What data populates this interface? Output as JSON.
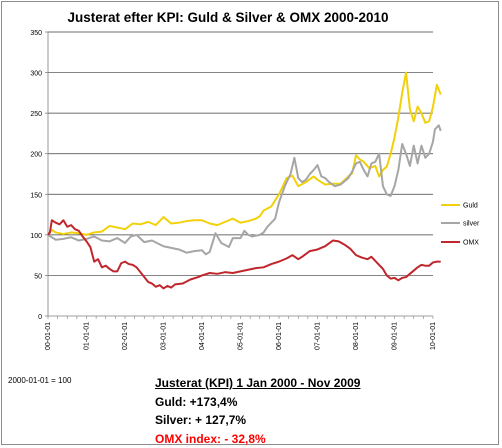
{
  "chart_data": {
    "type": "line",
    "title": "Justerat efter KPI: Guld & Silver & OMX 2000-2010",
    "xlabel": "",
    "ylabel": "",
    "ylim": [
      0,
      350
    ],
    "y_ticks": [
      0,
      50,
      100,
      150,
      200,
      250,
      300,
      350
    ],
    "x_range": [
      2000.0,
      2010.0
    ],
    "x_tick_labels": [
      "00-01-01",
      "01-01-01",
      "02-01-01",
      "03-01-01",
      "04-01-01",
      "05-01-01",
      "06-01-01",
      "07-01-01",
      "08-01-01",
      "09-01-01",
      "10-01-01"
    ],
    "grid": "horizontal",
    "legend_position": "right",
    "series": [
      {
        "name": "Guld",
        "color": "#f2d10a",
        "points": [
          [
            2000.0,
            100
          ],
          [
            2000.1,
            106
          ],
          [
            2000.2,
            103
          ],
          [
            2000.4,
            101
          ],
          [
            2000.6,
            103
          ],
          [
            2000.8,
            102
          ],
          [
            2001.0,
            100
          ],
          [
            2001.2,
            103
          ],
          [
            2001.4,
            104
          ],
          [
            2001.6,
            111
          ],
          [
            2001.8,
            109
          ],
          [
            2002.0,
            107
          ],
          [
            2002.2,
            114
          ],
          [
            2002.4,
            113
          ],
          [
            2002.6,
            116
          ],
          [
            2002.8,
            112
          ],
          [
            2003.0,
            122
          ],
          [
            2003.2,
            114
          ],
          [
            2003.4,
            115
          ],
          [
            2003.6,
            117
          ],
          [
            2003.8,
            118
          ],
          [
            2004.0,
            118
          ],
          [
            2004.2,
            114
          ],
          [
            2004.4,
            112
          ],
          [
            2004.6,
            116
          ],
          [
            2004.8,
            120
          ],
          [
            2005.0,
            115
          ],
          [
            2005.2,
            117
          ],
          [
            2005.4,
            120
          ],
          [
            2005.5,
            123
          ],
          [
            2005.6,
            130
          ],
          [
            2005.8,
            135
          ],
          [
            2006.0,
            150
          ],
          [
            2006.2,
            170
          ],
          [
            2006.35,
            173
          ],
          [
            2006.5,
            160
          ],
          [
            2006.7,
            165
          ],
          [
            2006.9,
            172
          ],
          [
            2007.0,
            168
          ],
          [
            2007.2,
            162
          ],
          [
            2007.4,
            163
          ],
          [
            2007.6,
            163
          ],
          [
            2007.8,
            172
          ],
          [
            2007.9,
            176
          ],
          [
            2008.0,
            198
          ],
          [
            2008.1,
            193
          ],
          [
            2008.2,
            190
          ],
          [
            2008.35,
            182
          ],
          [
            2008.5,
            185
          ],
          [
            2008.6,
            172
          ],
          [
            2008.7,
            180
          ],
          [
            2008.8,
            184
          ],
          [
            2008.9,
            200
          ],
          [
            2009.0,
            220
          ],
          [
            2009.1,
            245
          ],
          [
            2009.2,
            275
          ],
          [
            2009.3,
            300
          ],
          [
            2009.4,
            255
          ],
          [
            2009.5,
            240
          ],
          [
            2009.6,
            258
          ],
          [
            2009.7,
            250
          ],
          [
            2009.8,
            238
          ],
          [
            2009.9,
            240
          ],
          [
            2010.0,
            258
          ],
          [
            2010.1,
            285
          ],
          [
            2010.2,
            273
          ]
        ]
      },
      {
        "name": "silver",
        "color": "#a6a6a6",
        "points": [
          [
            2000.0,
            100
          ],
          [
            2000.1,
            97
          ],
          [
            2000.2,
            94
          ],
          [
            2000.4,
            95
          ],
          [
            2000.6,
            97
          ],
          [
            2000.8,
            93
          ],
          [
            2001.0,
            95
          ],
          [
            2001.2,
            98
          ],
          [
            2001.4,
            93
          ],
          [
            2001.6,
            92
          ],
          [
            2001.8,
            96
          ],
          [
            2002.0,
            90
          ],
          [
            2002.15,
            98
          ],
          [
            2002.3,
            100
          ],
          [
            2002.5,
            91
          ],
          [
            2002.7,
            93
          ],
          [
            2003.0,
            86
          ],
          [
            2003.2,
            84
          ],
          [
            2003.4,
            82
          ],
          [
            2003.6,
            78
          ],
          [
            2003.8,
            80
          ],
          [
            2004.0,
            81
          ],
          [
            2004.1,
            76
          ],
          [
            2004.2,
            79
          ],
          [
            2004.35,
            102
          ],
          [
            2004.5,
            90
          ],
          [
            2004.7,
            85
          ],
          [
            2004.8,
            96
          ],
          [
            2005.0,
            96
          ],
          [
            2005.1,
            105
          ],
          [
            2005.2,
            100
          ],
          [
            2005.3,
            98
          ],
          [
            2005.5,
            100
          ],
          [
            2005.6,
            103
          ],
          [
            2005.7,
            110
          ],
          [
            2005.9,
            120
          ],
          [
            2006.0,
            140
          ],
          [
            2006.15,
            160
          ],
          [
            2006.3,
            175
          ],
          [
            2006.4,
            195
          ],
          [
            2006.5,
            170
          ],
          [
            2006.6,
            165
          ],
          [
            2006.7,
            168
          ],
          [
            2006.8,
            175
          ],
          [
            2006.9,
            180
          ],
          [
            2007.0,
            186
          ],
          [
            2007.1,
            172
          ],
          [
            2007.2,
            170
          ],
          [
            2007.3,
            165
          ],
          [
            2007.45,
            160
          ],
          [
            2007.6,
            162
          ],
          [
            2007.8,
            170
          ],
          [
            2007.9,
            178
          ],
          [
            2008.0,
            188
          ],
          [
            2008.1,
            190
          ],
          [
            2008.2,
            180
          ],
          [
            2008.3,
            172
          ],
          [
            2008.4,
            188
          ],
          [
            2008.5,
            190
          ],
          [
            2008.6,
            200
          ],
          [
            2008.7,
            160
          ],
          [
            2008.8,
            150
          ],
          [
            2008.9,
            148
          ],
          [
            2009.0,
            160
          ],
          [
            2009.1,
            180
          ],
          [
            2009.2,
            212
          ],
          [
            2009.3,
            200
          ],
          [
            2009.4,
            185
          ],
          [
            2009.5,
            210
          ],
          [
            2009.6,
            188
          ],
          [
            2009.7,
            210
          ],
          [
            2009.8,
            195
          ],
          [
            2009.9,
            200
          ],
          [
            2010.0,
            215
          ],
          [
            2010.05,
            230
          ],
          [
            2010.15,
            235
          ],
          [
            2010.2,
            228
          ]
        ]
      },
      {
        "name": "OMX",
        "color": "#c0272d",
        "points": [
          [
            2000.0,
            100
          ],
          [
            2000.05,
            103
          ],
          [
            2000.1,
            118
          ],
          [
            2000.2,
            115
          ],
          [
            2000.3,
            113
          ],
          [
            2000.4,
            118
          ],
          [
            2000.5,
            110
          ],
          [
            2000.6,
            112
          ],
          [
            2000.7,
            107
          ],
          [
            2000.8,
            105
          ],
          [
            2000.9,
            98
          ],
          [
            2001.0,
            92
          ],
          [
            2001.1,
            85
          ],
          [
            2001.2,
            67
          ],
          [
            2001.3,
            70
          ],
          [
            2001.4,
            60
          ],
          [
            2001.5,
            62
          ],
          [
            2001.6,
            58
          ],
          [
            2001.7,
            55
          ],
          [
            2001.8,
            55
          ],
          [
            2001.9,
            65
          ],
          [
            2002.0,
            67
          ],
          [
            2002.1,
            64
          ],
          [
            2002.2,
            63
          ],
          [
            2002.3,
            60
          ],
          [
            2002.5,
            48
          ],
          [
            2002.6,
            42
          ],
          [
            2002.7,
            40
          ],
          [
            2002.8,
            36
          ],
          [
            2002.9,
            38
          ],
          [
            2003.0,
            34
          ],
          [
            2003.1,
            37
          ],
          [
            2003.2,
            35
          ],
          [
            2003.3,
            39
          ],
          [
            2003.5,
            40
          ],
          [
            2003.7,
            45
          ],
          [
            2003.9,
            48
          ],
          [
            2004.0,
            50
          ],
          [
            2004.2,
            53
          ],
          [
            2004.4,
            52
          ],
          [
            2004.6,
            54
          ],
          [
            2004.8,
            53
          ],
          [
            2005.0,
            55
          ],
          [
            2005.2,
            57
          ],
          [
            2005.4,
            59
          ],
          [
            2005.6,
            60
          ],
          [
            2005.8,
            64
          ],
          [
            2006.0,
            67
          ],
          [
            2006.2,
            71
          ],
          [
            2006.35,
            75
          ],
          [
            2006.5,
            70
          ],
          [
            2006.6,
            73
          ],
          [
            2006.8,
            80
          ],
          [
            2007.0,
            82
          ],
          [
            2007.2,
            86
          ],
          [
            2007.4,
            93
          ],
          [
            2007.55,
            92
          ],
          [
            2007.7,
            88
          ],
          [
            2007.85,
            83
          ],
          [
            2008.0,
            75
          ],
          [
            2008.15,
            72
          ],
          [
            2008.3,
            70
          ],
          [
            2008.4,
            73
          ],
          [
            2008.5,
            68
          ],
          [
            2008.6,
            63
          ],
          [
            2008.7,
            58
          ],
          [
            2008.8,
            50
          ],
          [
            2008.9,
            46
          ],
          [
            2009.0,
            47
          ],
          [
            2009.1,
            44
          ],
          [
            2009.2,
            47
          ],
          [
            2009.3,
            48
          ],
          [
            2009.4,
            52
          ],
          [
            2009.5,
            56
          ],
          [
            2009.6,
            60
          ],
          [
            2009.7,
            63
          ],
          [
            2009.8,
            62
          ],
          [
            2009.9,
            62
          ],
          [
            2010.0,
            66
          ],
          [
            2010.1,
            67
          ],
          [
            2010.2,
            67
          ]
        ]
      }
    ]
  },
  "footer": {
    "base_note": "2000-01-01 = 100",
    "heading": "Justerat (KPI) 1 Jan 2000 - Nov 2009",
    "gold_line": "Guld: +173,4%",
    "silver_line": "Silver: + 127,7%",
    "omx_line": "OMX index: - 32,8%"
  }
}
